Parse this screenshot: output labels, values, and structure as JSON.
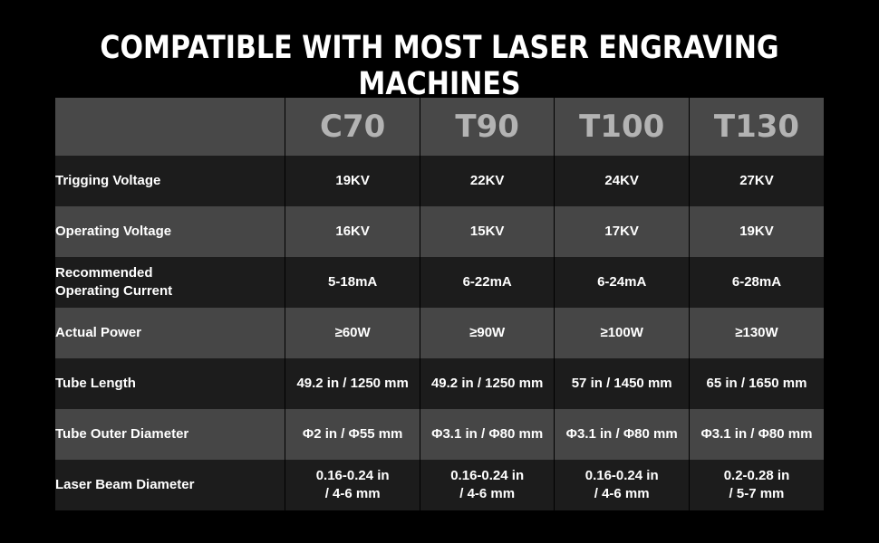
{
  "title": "COMPATIBLE WITH MOST LASER ENGRAVING MACHINES",
  "models": [
    "C70",
    "T90",
    "T100",
    "T130"
  ],
  "rows": [
    {
      "label": "Trigging Voltage",
      "values": [
        "19KV",
        "22KV",
        "24KV",
        "27KV"
      ]
    },
    {
      "label": "Operating Voltage",
      "values": [
        "16KV",
        "15KV",
        "17KV",
        "19KV"
      ]
    },
    {
      "label_lines": [
        "Recommended",
        "Operating Current"
      ],
      "values": [
        "5-18mA",
        "6-22mA",
        "6-24mA",
        "6-28mA"
      ]
    },
    {
      "label": "Actual Power",
      "values": [
        "≥60W",
        "≥90W",
        "≥100W",
        "≥130W"
      ]
    },
    {
      "label": "Tube Length",
      "values": [
        "49.2 in / 1250 mm",
        "49.2 in / 1250 mm",
        "57 in / 1450 mm",
        "65 in / 1650 mm"
      ]
    },
    {
      "label": "Tube Outer Diameter",
      "values": [
        "Φ2 in / Φ55 mm",
        "Φ3.1 in / Φ80 mm",
        "Φ3.1 in / Φ80 mm",
        "Φ3.1 in / Φ80 mm"
      ]
    },
    {
      "label": "Laser Beam Diameter",
      "values_lines": [
        [
          "0.16-0.24 in",
          "/ 4-6 mm"
        ],
        [
          "0.16-0.24 in",
          "/ 4-6 mm"
        ],
        [
          "0.16-0.24 in",
          "/ 4-6 mm"
        ],
        [
          "0.2-0.28 in",
          "/ 5-7 mm"
        ]
      ]
    }
  ]
}
